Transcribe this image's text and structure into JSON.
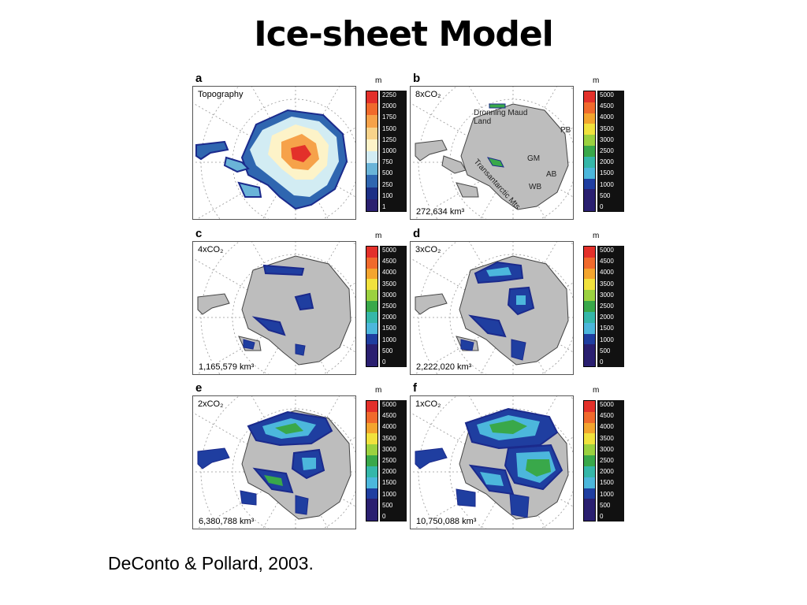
{
  "title": "Ice-sheet Model",
  "caption": "DeConto & Pollard, 2003.",
  "colors": {
    "topography_scale": [
      "#e3302a",
      "#f06a2c",
      "#f6a24a",
      "#f8d38a",
      "#fdf3c8",
      "#d2ecf3",
      "#6ab4d8",
      "#2f66b0",
      "#1c2f86",
      "#2a1f6f"
    ],
    "volume_scale": [
      "#e3302a",
      "#f06a2c",
      "#f3a52e",
      "#f1e23d",
      "#9bd13f",
      "#39a84a",
      "#35b7a9",
      "#4cb7dc",
      "#1f3ea0",
      "#2a1f70",
      "#2a1f70"
    ],
    "land": "#bdbdbd",
    "ice_edge": "#1b2a8c"
  },
  "panels": [
    {
      "letter": "a",
      "label": "Topography",
      "unit": "m",
      "ticks": [
        "2250",
        "2000",
        "1750",
        "1500",
        "1250",
        "1000",
        "750",
        "500",
        "250",
        "100",
        "1"
      ]
    },
    {
      "letter": "b",
      "label": "8xCO₂",
      "unit": "m",
      "volume": "272,634 km³",
      "ticks": [
        "5000",
        "4500",
        "4000",
        "3500",
        "3000",
        "2500",
        "2000",
        "1500",
        "1000",
        "500",
        "0"
      ],
      "regions": {
        "dml": "Dronning Maud Land",
        "pb": "PB",
        "gm": "GM",
        "ab": "AB",
        "wb": "WB",
        "tam": "Transantarctic Mts"
      }
    },
    {
      "letter": "c",
      "label": "4xCO₂",
      "unit": "m",
      "volume": "1,165,579 km³",
      "ticks": [
        "5000",
        "4500",
        "4000",
        "3500",
        "3000",
        "2500",
        "2000",
        "1500",
        "1000",
        "500",
        "0"
      ]
    },
    {
      "letter": "d",
      "label": "3xCO₂",
      "unit": "m",
      "volume": "2,222,020 km³",
      "ticks": [
        "5000",
        "4500",
        "4000",
        "3500",
        "3000",
        "2500",
        "2000",
        "1500",
        "1000",
        "500",
        "0"
      ]
    },
    {
      "letter": "e",
      "label": "2xCO₂",
      "unit": "m",
      "volume": "6,380,788 km³",
      "ticks": [
        "5000",
        "4500",
        "4000",
        "3500",
        "3000",
        "2500",
        "2000",
        "1500",
        "1000",
        "500",
        "0"
      ]
    },
    {
      "letter": "f",
      "label": "1xCO₂",
      "unit": "m",
      "volume": "10,750,088 km³",
      "ticks": [
        "5000",
        "4500",
        "4000",
        "3500",
        "3000",
        "2500",
        "2000",
        "1500",
        "1000",
        "500",
        "0"
      ]
    }
  ]
}
